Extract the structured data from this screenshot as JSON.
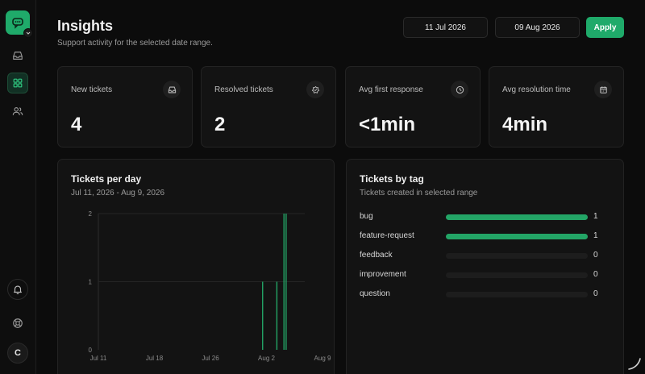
{
  "header": {
    "title": "Insights",
    "subtitle": "Support activity for the selected date range.",
    "start_date": "11 Jul 2026",
    "end_date": "09 Aug 2026",
    "apply_label": "Apply"
  },
  "sidebar": {
    "avatar_initial": "C",
    "items": [
      {
        "name": "inbox",
        "icon": "inbox-icon"
      },
      {
        "name": "insights",
        "icon": "grid-icon",
        "active": true
      },
      {
        "name": "contacts",
        "icon": "users-icon"
      }
    ],
    "bottom": [
      {
        "name": "notifications",
        "icon": "bell-icon"
      },
      {
        "name": "help",
        "icon": "lifebuoy-icon"
      }
    ]
  },
  "stats": [
    {
      "label": "New tickets",
      "value": "4",
      "icon": "inbox-icon"
    },
    {
      "label": "Resolved tickets",
      "value": "2",
      "icon": "resolved-icon"
    },
    {
      "label": "Avg first response",
      "value": "<1min",
      "icon": "clock-icon"
    },
    {
      "label": "Avg resolution time",
      "value": "4min",
      "icon": "calendar-icon"
    }
  ],
  "tickets_per_day": {
    "title": "Tickets per day",
    "range_label": "Jul 11, 2026 - Aug 9, 2026"
  },
  "tickets_by_tag": {
    "title": "Tickets by tag",
    "subtitle": "Tickets created in selected range",
    "max": 1,
    "tags": [
      {
        "name": "bug",
        "count": 1
      },
      {
        "name": "feature-request",
        "count": 1
      },
      {
        "name": "feedback",
        "count": 0
      },
      {
        "name": "improvement",
        "count": 0
      },
      {
        "name": "question",
        "count": 0
      }
    ]
  },
  "chart_data": {
    "type": "bar",
    "x_tick_labels": [
      "Jul 11",
      "Jul 18",
      "Jul 26",
      "Aug 2",
      "Aug 9"
    ],
    "y_tick_labels": [
      "0",
      "1",
      "2"
    ],
    "ylim": [
      0,
      2
    ],
    "x_range_days": [
      0,
      29
    ],
    "points": [
      {
        "day": 23,
        "value": 1
      },
      {
        "day": 25,
        "value": 1
      },
      {
        "day": 26,
        "value": 2
      },
      {
        "day": 26.3,
        "value": 2
      }
    ],
    "colors": {
      "bar": "#23a566",
      "grid": "#262626"
    }
  },
  "colors": {
    "accent": "#1faa6a",
    "background": "#0c0c0c",
    "card": "#131313"
  }
}
